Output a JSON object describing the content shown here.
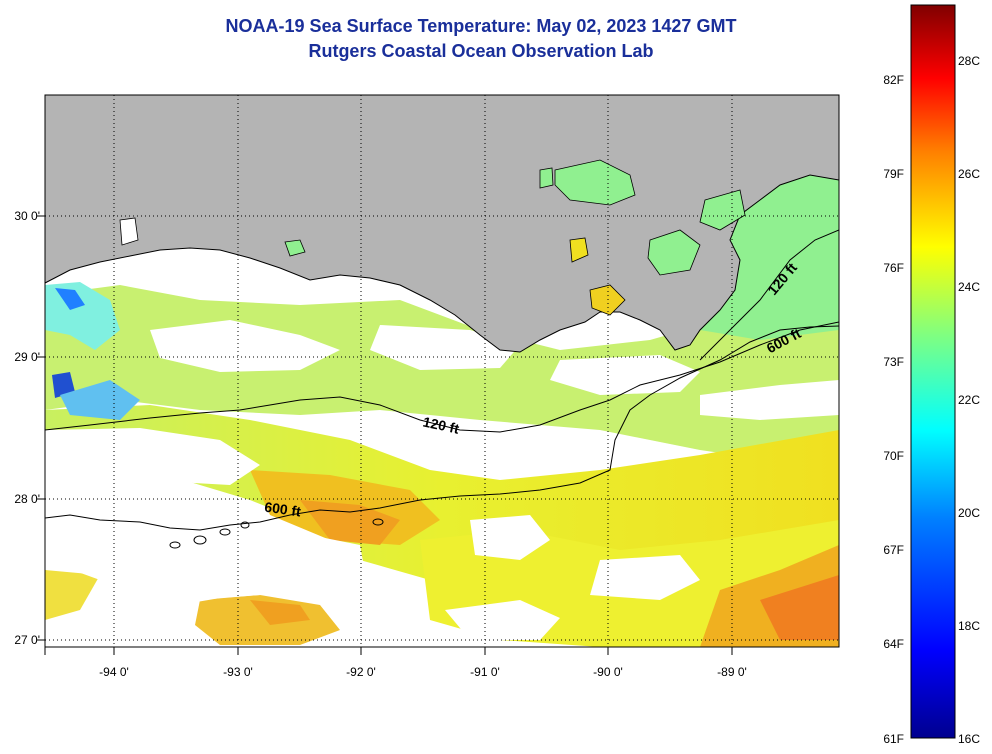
{
  "title": {
    "line1": "NOAA-19 Sea Surface Temperature:  May 02, 2023 1427 GMT",
    "line2": "Rutgers Coastal Ocean Observation Lab"
  },
  "map": {
    "lat_labels": [
      "30 0'",
      "29 0'",
      "28 0'",
      "27 0'"
    ],
    "lon_labels": [
      "-94 0'",
      "-93 0'",
      "-92 0'",
      "-91 0'",
      "-90 0'",
      "-89 0'"
    ],
    "contour_labels": [
      "120 ft",
      "600 ft",
      "120 ft",
      "600 ft"
    ],
    "land_color": "#b4b4b4",
    "cloud_color": "#ffffff"
  },
  "colorbar": {
    "fahrenheit_labels": [
      "82F",
      "79F",
      "76F",
      "73F",
      "70F",
      "67F",
      "64F",
      "61F"
    ],
    "celsius_labels": [
      "28C",
      "26C",
      "24C",
      "22C",
      "20C",
      "18C",
      "16C"
    ],
    "colormap": [
      "#00008f",
      "#0000ff",
      "#0080ff",
      "#00ffff",
      "#80ff80",
      "#ffff00",
      "#ff8000",
      "#ff0000",
      "#800000"
    ]
  }
}
